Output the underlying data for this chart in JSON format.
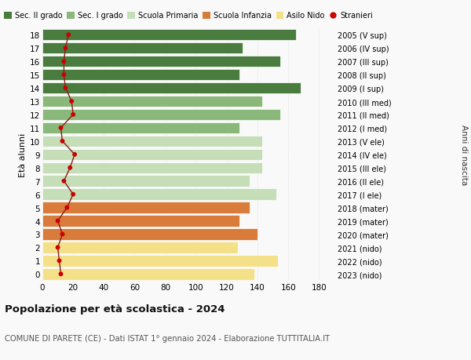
{
  "ages": [
    18,
    17,
    16,
    15,
    14,
    13,
    12,
    11,
    10,
    9,
    8,
    7,
    6,
    5,
    4,
    3,
    2,
    1,
    0
  ],
  "years_labels": [
    "2005 (V sup)",
    "2006 (IV sup)",
    "2007 (III sup)",
    "2008 (II sup)",
    "2009 (I sup)",
    "2010 (III med)",
    "2011 (II med)",
    "2012 (I med)",
    "2013 (V ele)",
    "2014 (IV ele)",
    "2015 (III ele)",
    "2016 (II ele)",
    "2017 (I ele)",
    "2018 (mater)",
    "2019 (mater)",
    "2020 (mater)",
    "2021 (nido)",
    "2022 (nido)",
    "2023 (nido)"
  ],
  "bar_values": [
    165,
    130,
    155,
    128,
    168,
    143,
    155,
    128,
    143,
    143,
    143,
    135,
    152,
    135,
    128,
    140,
    127,
    153,
    138
  ],
  "bar_colors": [
    "#4a7c3f",
    "#4a7c3f",
    "#4a7c3f",
    "#4a7c3f",
    "#4a7c3f",
    "#8ab87a",
    "#8ab87a",
    "#8ab87a",
    "#c5deb8",
    "#c5deb8",
    "#c5deb8",
    "#c5deb8",
    "#c5deb8",
    "#d97b3a",
    "#d97b3a",
    "#d97b3a",
    "#f5e08a",
    "#f5e08a",
    "#f5e08a"
  ],
  "stranieri_values": [
    17,
    15,
    14,
    14,
    15,
    19,
    20,
    12,
    13,
    21,
    18,
    14,
    20,
    16,
    10,
    13,
    10,
    11,
    12
  ],
  "legend_labels": [
    "Sec. II grado",
    "Sec. I grado",
    "Scuola Primaria",
    "Scuola Infanzia",
    "Asilo Nido",
    "Stranieri"
  ],
  "legend_colors": [
    "#4a7c3f",
    "#8ab87a",
    "#c5deb8",
    "#d97b3a",
    "#f5e08a",
    "#cc0000"
  ],
  "title": "Popolazione per età scolastica - 2024",
  "subtitle": "COMUNE DI PARETE (CE) - Dati ISTAT 1° gennaio 2024 - Elaborazione TUTTITALIA.IT",
  "ylabel_left": "Età alunni",
  "ylabel_right": "Anni di nascita",
  "xlim": [
    0,
    190
  ],
  "xticks": [
    0,
    20,
    40,
    60,
    80,
    100,
    120,
    140,
    160,
    180
  ],
  "grid_color": "#dddddd",
  "bg_color": "#f9f9f9",
  "bar_edge_color": "white",
  "stranieri_line_color": "#8b1a1a",
  "stranieri_dot_color": "#cc0000"
}
